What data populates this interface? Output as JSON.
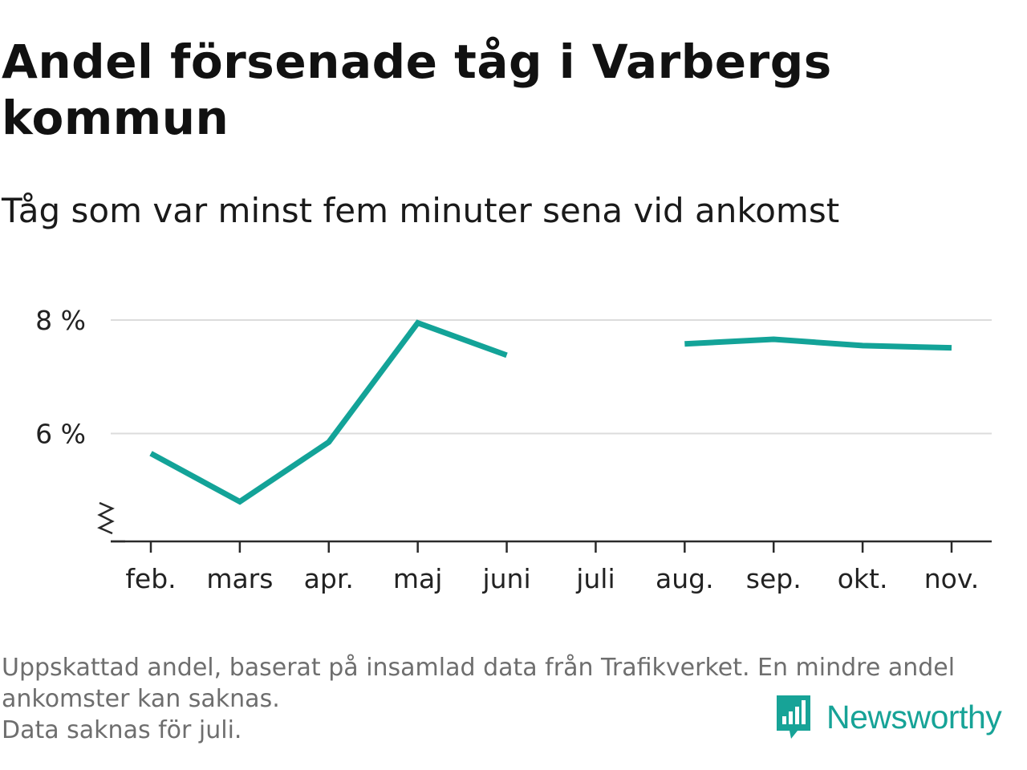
{
  "header": {
    "title": "Andel försenade tåg i Varbergs kommun",
    "subtitle": "Tåg som var minst fem minuter sena vid ankomst"
  },
  "chart_data": {
    "type": "line",
    "title": "Andel försenade tåg i Varbergs kommun",
    "subtitle": "Tåg som var minst fem minuter sena vid ankomst",
    "categories": [
      "feb.",
      "mars",
      "apr.",
      "maj",
      "juni",
      "juli",
      "aug.",
      "sep.",
      "okt.",
      "nov."
    ],
    "series": [
      {
        "values": [
          5.65,
          4.8,
          5.85,
          7.95,
          7.38,
          null,
          7.58,
          7.66,
          7.55,
          7.51
        ]
      }
    ],
    "y_ticks": [
      6,
      8
    ],
    "y_tick_labels": [
      "6 %",
      "8 %"
    ],
    "ylim": [
      4.1,
      8
    ],
    "y_axis_break": true,
    "grid": true,
    "xlabel": "",
    "ylabel": "",
    "line_color": "#13a398"
  },
  "footer": {
    "note_line1": "Uppskattad andel, baserat på insamlad data från Trafikverket. En mindre andel",
    "note_line2": "ankomster kan saknas.",
    "note_line3": "Data saknas för juli."
  },
  "brand": {
    "name": "Newsworthy",
    "icon": "newsworthy-logo-icon",
    "color": "#17a397"
  }
}
